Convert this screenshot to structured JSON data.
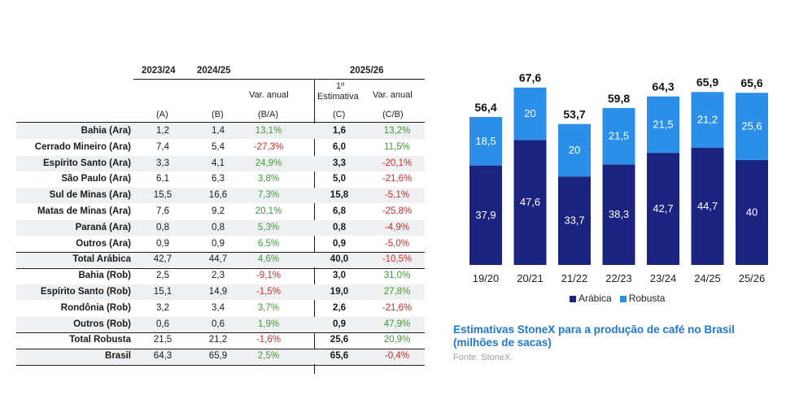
{
  "table": {
    "period_headers": [
      "2023/24",
      "2024/25",
      "2025/26"
    ],
    "var_anual_label": "Var. anual",
    "estimativa_label_1": "1º",
    "estimativa_label_2": "Estimativa",
    "col_letters": [
      "(A)",
      "(B)",
      "(B/A)",
      "(C)",
      "(C/B)"
    ],
    "rows": [
      {
        "name": "Bahia (Ara)",
        "a": "1,2",
        "b": "1,4",
        "ba": "13,1%",
        "c": "1,6",
        "cb": "13,2%"
      },
      {
        "name": "Cerrado Mineiro (Ara)",
        "a": "7,4",
        "b": "5,4",
        "ba": "-27,3%",
        "c": "6,0",
        "cb": "11,5%"
      },
      {
        "name": "Espírito Santo (Ara)",
        "a": "3,3",
        "b": "4,1",
        "ba": "24,9%",
        "c": "3,3",
        "cb": "-20,1%"
      },
      {
        "name": "São Paulo (Ara)",
        "a": "6,1",
        "b": "6,3",
        "ba": "3,8%",
        "c": "5,0",
        "cb": "-21,6%"
      },
      {
        "name": "Sul de Minas (Ara)",
        "a": "15,5",
        "b": "16,6",
        "ba": "7,3%",
        "c": "15,8",
        "cb": "-5,1%"
      },
      {
        "name": "Matas de Minas (Ara)",
        "a": "7,6",
        "b": "9,2",
        "ba": "20,1%",
        "c": "6,8",
        "cb": "-25,8%"
      },
      {
        "name": "Paraná (Ara)",
        "a": "0,8",
        "b": "0,8",
        "ba": "5,3%",
        "c": "0,8",
        "cb": "-4,9%"
      },
      {
        "name": "Outros (Ara)",
        "a": "0,9",
        "b": "0,9",
        "ba": "6,5%",
        "c": "0,9",
        "cb": "-5,0%"
      },
      {
        "name": "Total Arábica",
        "a": "42,7",
        "b": "44,7",
        "ba": "4,6%",
        "c": "40,0",
        "cb": "-10,5%"
      },
      {
        "name": "Bahia (Rob)",
        "a": "2,5",
        "b": "2,3",
        "ba": "-9,1%",
        "c": "3,0",
        "cb": "31,0%"
      },
      {
        "name": "Espírito Santo (Rob)",
        "a": "15,1",
        "b": "14,9",
        "ba": "-1,5%",
        "c": "19,0",
        "cb": "27,8%"
      },
      {
        "name": "Rondônia (Rob)",
        "a": "3,2",
        "b": "3,4",
        "ba": "3,7%",
        "c": "2,6",
        "cb": "-21,6%"
      },
      {
        "name": "Outros (Rob)",
        "a": "0,6",
        "b": "0,6",
        "ba": "1,9%",
        "c": "0,9",
        "cb": "47,9%"
      },
      {
        "name": "Total Robusta",
        "a": "21,5",
        "b": "21,2",
        "ba": "-1,6%",
        "c": "25,6",
        "cb": "20,9%"
      },
      {
        "name": "Brasil",
        "a": "64,3",
        "b": "65,9",
        "ba": "2,5%",
        "c": "65,6",
        "cb": "-0,4%"
      }
    ]
  },
  "chart_data": {
    "type": "bar",
    "stacked": true,
    "categories": [
      "19/20",
      "20/21",
      "21/22",
      "22/23",
      "23/24",
      "24/25",
      "25/26"
    ],
    "series": [
      {
        "name": "Arábica",
        "color": "#1a237e",
        "values": [
          37.9,
          47.6,
          33.7,
          38.3,
          42.7,
          44.7,
          40
        ],
        "labels": [
          "37,9",
          "47,6",
          "33,7",
          "38,3",
          "42,7",
          "44,7",
          "40"
        ]
      },
      {
        "name": "Robusta",
        "color": "#2b8ee8",
        "values": [
          18.5,
          20,
          20,
          21.5,
          21.5,
          21.2,
          25.6
        ],
        "labels": [
          "18,5",
          "20",
          "20",
          "21,5",
          "21,5",
          "21,2",
          "25,6"
        ]
      }
    ],
    "totals": [
      "56,4",
      "67,6",
      "53,7",
      "59,8",
      "64,3",
      "65,9",
      "65,6"
    ],
    "total_values": [
      56.4,
      67.6,
      53.7,
      59.8,
      64.3,
      65.9,
      65.6
    ],
    "ylim": [
      0,
      70
    ],
    "legend_position": "bottom"
  },
  "caption": {
    "title": "Estimativas StoneX para a produção de café no Brasil (milhões de sacas)",
    "source": "Fonte: StoneX."
  }
}
